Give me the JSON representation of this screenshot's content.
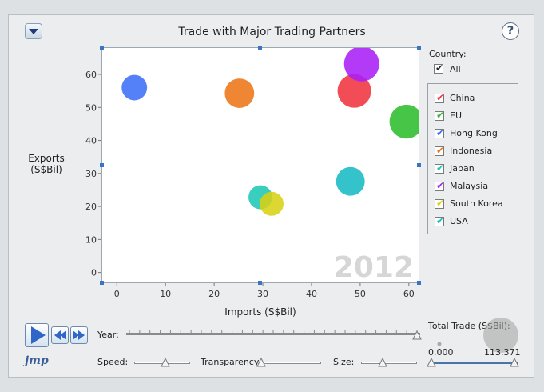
{
  "title": "Trade with Major Trading Partners",
  "help_glyph": "?",
  "watermark_year": "2012",
  "axes": {
    "xlabel": "Imports (S$Bil)",
    "ylabel_line1": "Exports",
    "ylabel_line2": "(S$Bil)",
    "x_ticks": [
      "0",
      "10",
      "20",
      "30",
      "40",
      "50",
      "60"
    ],
    "y_ticks": [
      "0",
      "10",
      "20",
      "30",
      "40",
      "50",
      "60"
    ]
  },
  "legend": {
    "header": "Country:",
    "all_label": "All",
    "items": [
      {
        "label": "China",
        "color": "#f0343f",
        "checked": true
      },
      {
        "label": "EU",
        "color": "#2ebd2e",
        "checked": true
      },
      {
        "label": "Hong Kong",
        "color": "#3d6ff7",
        "checked": true
      },
      {
        "label": "Indonesia",
        "color": "#ed7517",
        "checked": true
      },
      {
        "label": "Japan",
        "color": "#1fc7b5",
        "checked": true
      },
      {
        "label": "Malaysia",
        "color": "#a81ff5",
        "checked": true
      },
      {
        "label": "South Korea",
        "color": "#d8d114",
        "checked": true
      },
      {
        "label": "USA",
        "color": "#19bbc4",
        "checked": true
      }
    ]
  },
  "controls": {
    "year_label": "Year:",
    "speed_label": "Speed:",
    "transparency_label": "Transparency:",
    "size_label": "Size:",
    "total_trade_label": "Total Trade (S$Bil):",
    "range_min": "0.000",
    "range_max": "113.371",
    "year_position": 1.0,
    "speed_position": 0.55,
    "transparency_position": 0.0,
    "size_position": 0.38
  },
  "logo_text": "jmp",
  "chart_data": {
    "type": "scatter",
    "title": "Trade with Major Trading Partners",
    "xlabel": "Imports (S$Bil)",
    "ylabel": "Exports (S$Bil)",
    "xlim": [
      -3,
      62
    ],
    "ylim": [
      -3,
      68
    ],
    "year": "2012",
    "points": [
      {
        "series": "Hong Kong",
        "x": 3.6,
        "y": 56,
        "color": "#3d6ff7",
        "total": 59.6
      },
      {
        "series": "Indonesia",
        "x": 25.2,
        "y": 54.3,
        "color": "#ed7517",
        "total": 79.5
      },
      {
        "series": "Japan",
        "x": 29.5,
        "y": 22.8,
        "color": "#1fc7b5",
        "total": 52.3
      },
      {
        "series": "South Korea",
        "x": 31.8,
        "y": 20.8,
        "color": "#d8d114",
        "total": 52.6
      },
      {
        "series": "USA",
        "x": 48.0,
        "y": 27.6,
        "color": "#19bbc4",
        "total": 75.6
      },
      {
        "series": "China",
        "x": 48.8,
        "y": 55.0,
        "color": "#f0343f",
        "total": 103.8
      },
      {
        "series": "Malaysia",
        "x": 50.3,
        "y": 63.2,
        "color": "#a81ff5",
        "total": 113.5
      },
      {
        "series": "EU",
        "x": 59.5,
        "y": 45.7,
        "color": "#2ebd2e",
        "total": 105.2
      }
    ]
  }
}
